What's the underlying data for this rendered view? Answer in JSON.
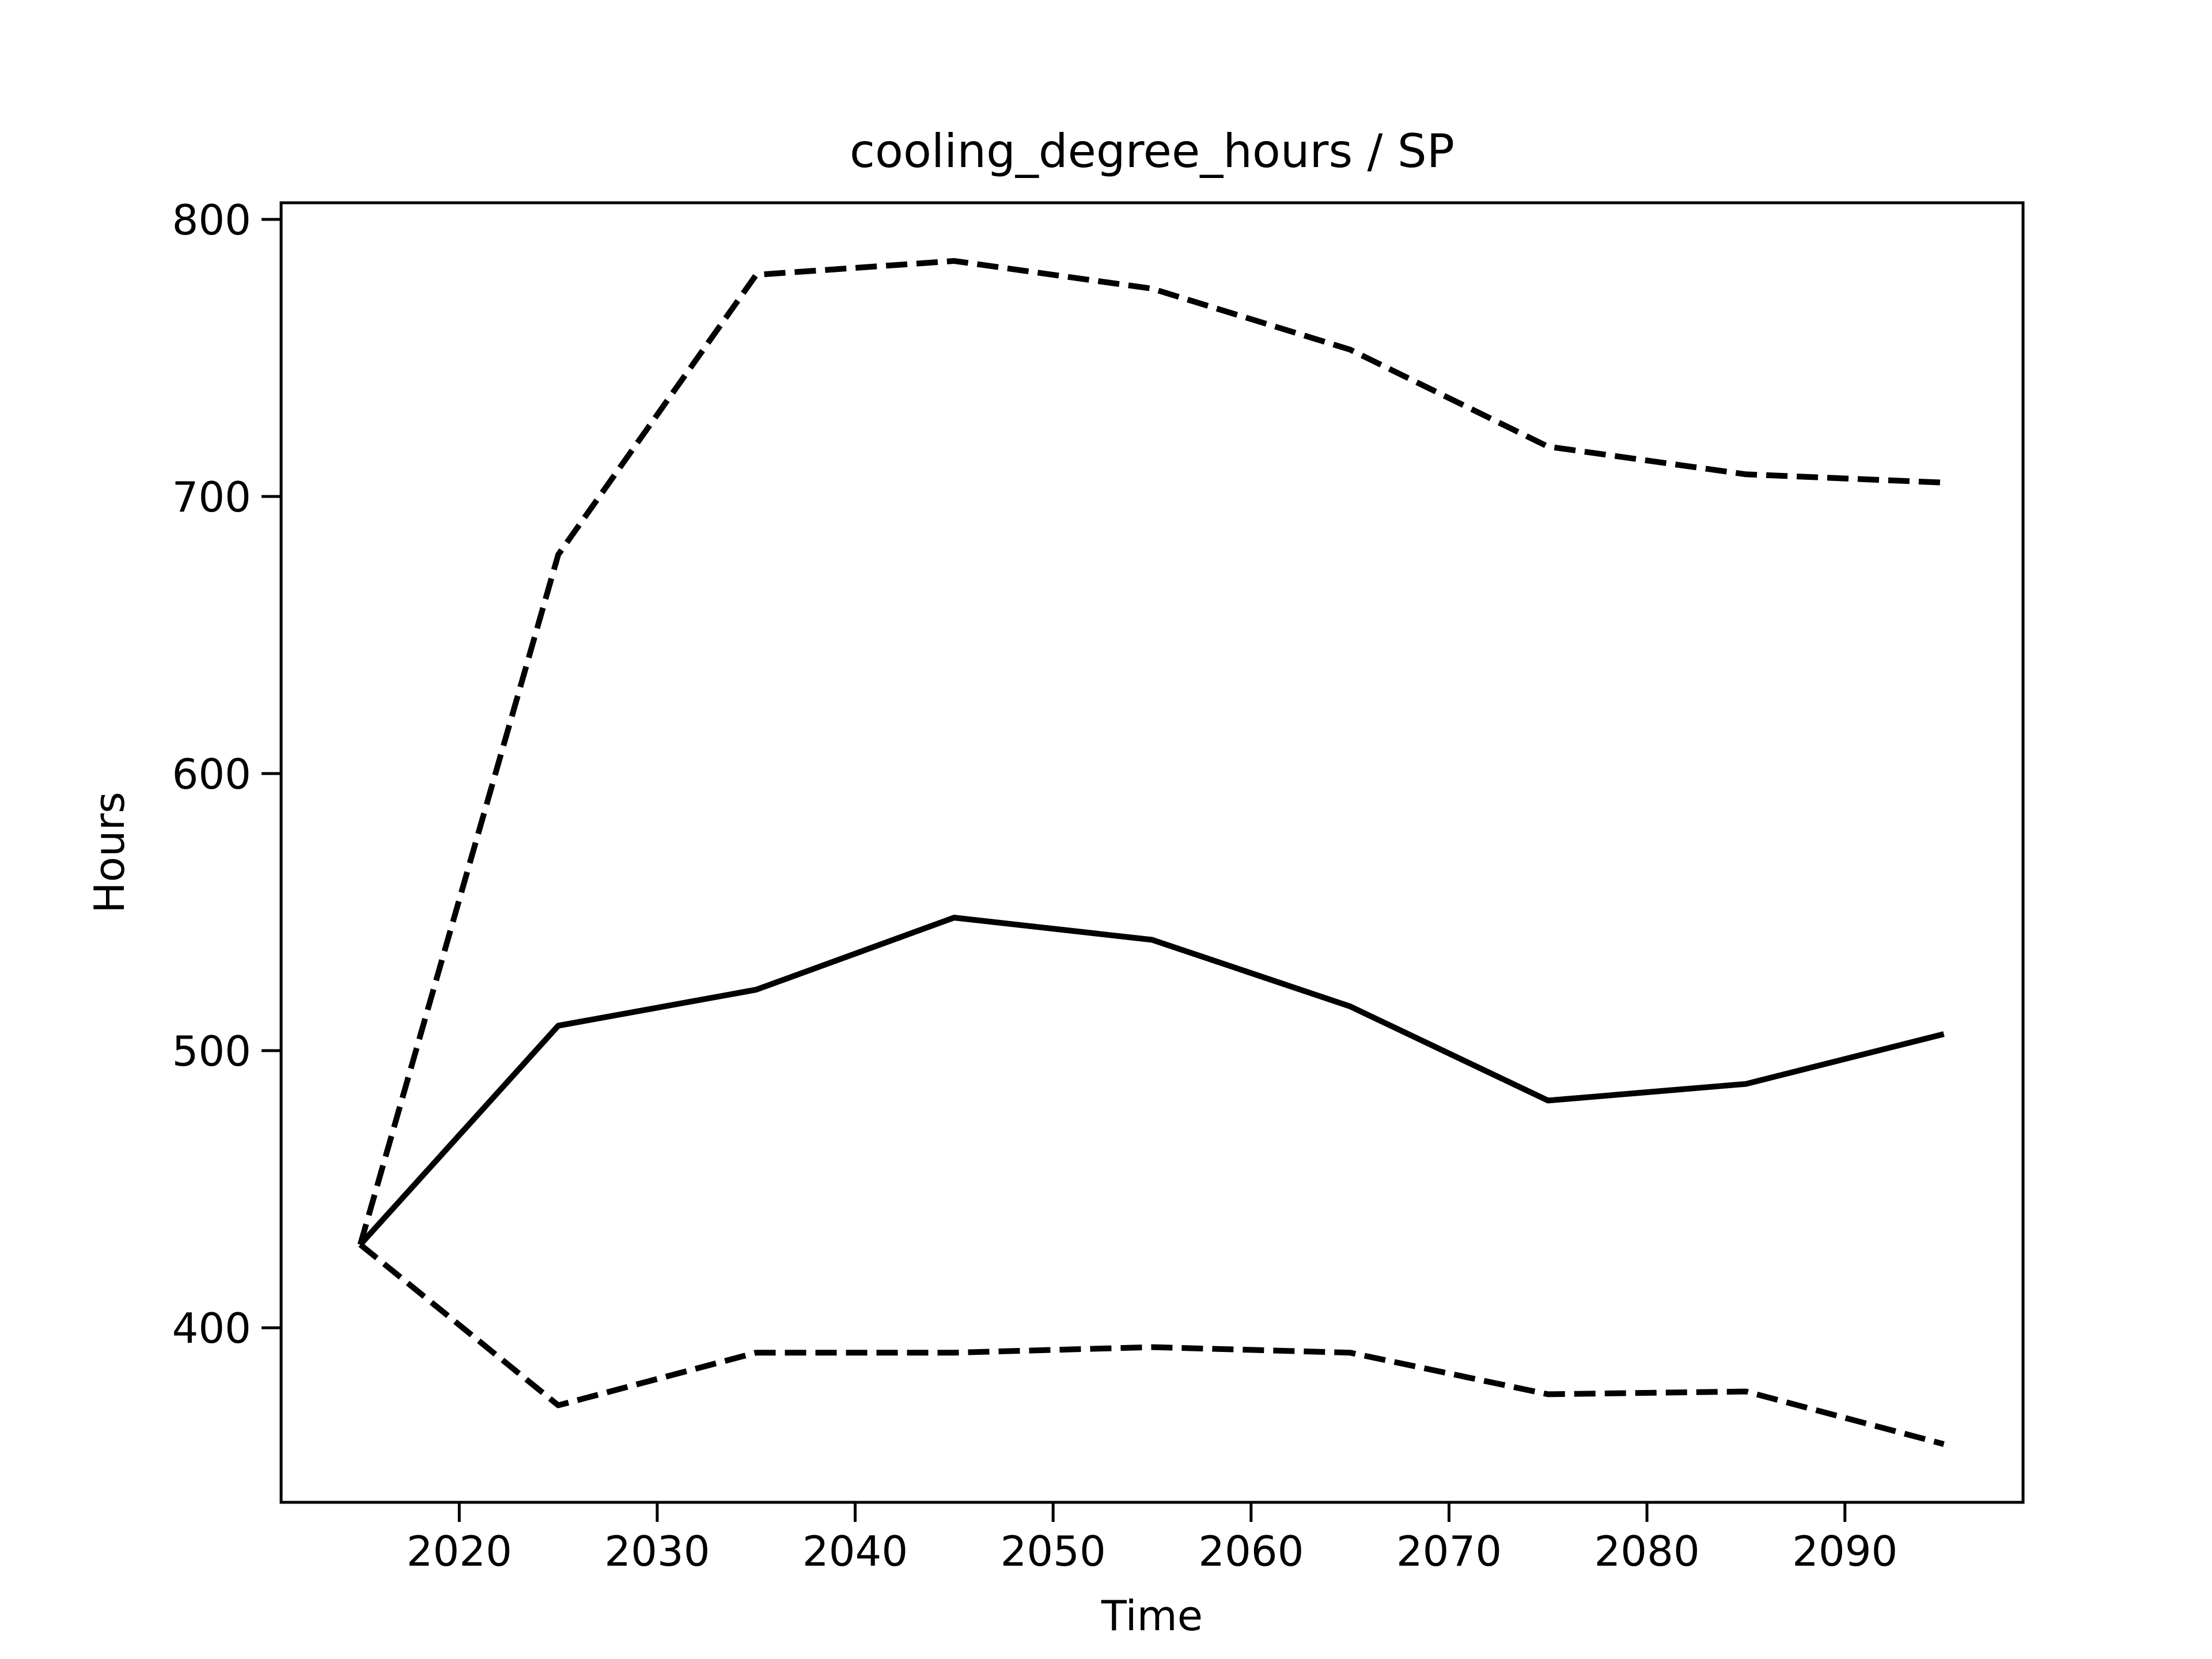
{
  "chart_data": {
    "type": "line",
    "title": "cooling_degree_hours / SP",
    "xlabel": "Time",
    "ylabel": "Hours",
    "xlim": [
      2011,
      2099
    ],
    "ylim": [
      337,
      806
    ],
    "xticks": [
      2020,
      2030,
      2040,
      2050,
      2060,
      2070,
      2080,
      2090
    ],
    "yticks": [
      400,
      500,
      600,
      700,
      800
    ],
    "grid": false,
    "x": [
      2015,
      2025,
      2035,
      2045,
      2055,
      2065,
      2075,
      2085,
      2095
    ],
    "series": [
      {
        "style": "dashed",
        "color": "#000000",
        "values": [
          430,
          679,
          780,
          785,
          775,
          753,
          718,
          708,
          705
        ]
      },
      {
        "style": "solid",
        "color": "#000000",
        "values": [
          430,
          509,
          522,
          548,
          540,
          516,
          482,
          488,
          506
        ]
      },
      {
        "style": "dashed",
        "color": "#000000",
        "values": [
          430,
          372,
          391,
          391,
          393,
          391,
          376,
          377,
          358
        ]
      }
    ]
  }
}
